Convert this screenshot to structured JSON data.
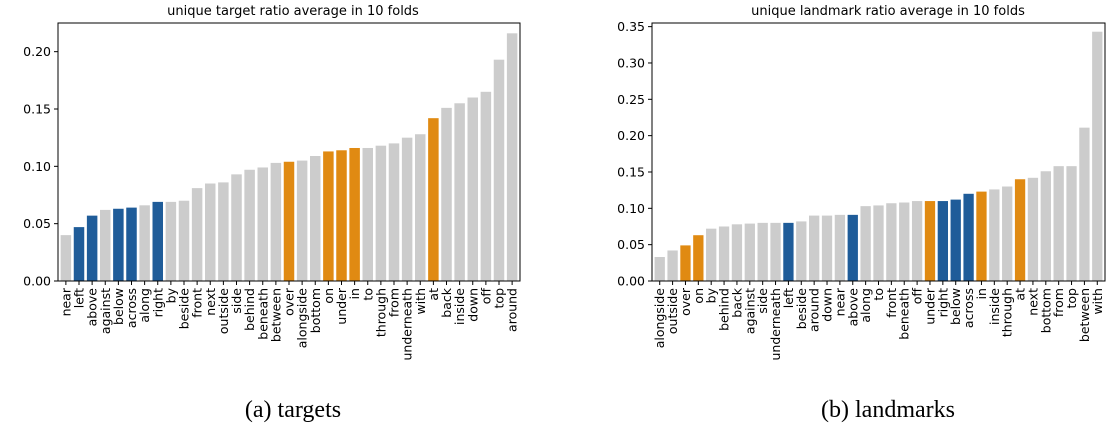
{
  "colors": {
    "gray": "#cccccc",
    "blue": "#1f5c99",
    "orange": "#e08a12",
    "axis": "#000000",
    "background": "#ffffff"
  },
  "chart_data": [
    {
      "type": "bar",
      "title": "unique target ratio average in 10 folds",
      "caption": "(a) targets",
      "xlabel": "",
      "ylabel": "",
      "ylim": [
        0,
        0.225
      ],
      "yticks": [
        0.0,
        0.05,
        0.1,
        0.15,
        0.2
      ],
      "ytick_labels": [
        "0.00",
        "0.05",
        "0.10",
        "0.15",
        "0.20"
      ],
      "grid": false,
      "categories": [
        "near",
        "left",
        "above",
        "against",
        "below",
        "across",
        "along",
        "right",
        "by",
        "beside",
        "front",
        "next",
        "outside",
        "side",
        "behind",
        "beneath",
        "between",
        "over",
        "alongside",
        "bottom",
        "on",
        "under",
        "in",
        "to",
        "through",
        "from",
        "underneath",
        "with",
        "at",
        "back",
        "inside",
        "down",
        "off",
        "top",
        "around"
      ],
      "values": [
        0.04,
        0.047,
        0.057,
        0.062,
        0.063,
        0.064,
        0.066,
        0.069,
        0.069,
        0.07,
        0.081,
        0.085,
        0.086,
        0.093,
        0.097,
        0.099,
        0.103,
        0.104,
        0.105,
        0.109,
        0.113,
        0.114,
        0.116,
        0.116,
        0.118,
        0.12,
        0.125,
        0.128,
        0.142,
        0.151,
        0.155,
        0.16,
        0.165,
        0.193,
        0.216
      ],
      "bar_colors": [
        "gray",
        "blue",
        "blue",
        "gray",
        "blue",
        "blue",
        "gray",
        "blue",
        "gray",
        "gray",
        "gray",
        "gray",
        "gray",
        "gray",
        "gray",
        "gray",
        "gray",
        "orange",
        "gray",
        "gray",
        "orange",
        "orange",
        "orange",
        "gray",
        "gray",
        "gray",
        "gray",
        "gray",
        "orange",
        "gray",
        "gray",
        "gray",
        "gray",
        "gray",
        "gray"
      ]
    },
    {
      "type": "bar",
      "title": "unique landmark ratio average in 10 folds",
      "caption": "(b) landmarks",
      "xlabel": "",
      "ylabel": "",
      "ylim": [
        0,
        0.355
      ],
      "yticks": [
        0.0,
        0.05,
        0.1,
        0.15,
        0.2,
        0.25,
        0.3,
        0.35
      ],
      "ytick_labels": [
        "0.00",
        "0.05",
        "0.10",
        "0.15",
        "0.20",
        "0.25",
        "0.30",
        "0.35"
      ],
      "grid": false,
      "categories": [
        "alongside",
        "outside",
        "over",
        "on",
        "by",
        "behind",
        "back",
        "against",
        "side",
        "underneath",
        "left",
        "beside",
        "around",
        "down",
        "near",
        "above",
        "along",
        "to",
        "front",
        "beneath",
        "off",
        "under",
        "right",
        "below",
        "across",
        "in",
        "inside",
        "through",
        "at",
        "next",
        "bottom",
        "from",
        "top",
        "between",
        "with"
      ],
      "values": [
        0.033,
        0.042,
        0.049,
        0.063,
        0.072,
        0.075,
        0.078,
        0.079,
        0.08,
        0.08,
        0.08,
        0.082,
        0.09,
        0.09,
        0.091,
        0.091,
        0.103,
        0.104,
        0.107,
        0.108,
        0.11,
        0.11,
        0.11,
        0.112,
        0.12,
        0.123,
        0.126,
        0.13,
        0.14,
        0.142,
        0.151,
        0.158,
        0.158,
        0.211,
        0.343
      ],
      "bar_colors": [
        "gray",
        "gray",
        "orange",
        "orange",
        "gray",
        "gray",
        "gray",
        "gray",
        "gray",
        "gray",
        "blue",
        "gray",
        "gray",
        "gray",
        "gray",
        "blue",
        "gray",
        "gray",
        "gray",
        "gray",
        "gray",
        "orange",
        "blue",
        "blue",
        "blue",
        "orange",
        "gray",
        "gray",
        "orange",
        "gray",
        "gray",
        "gray",
        "gray",
        "gray",
        "gray"
      ]
    }
  ]
}
